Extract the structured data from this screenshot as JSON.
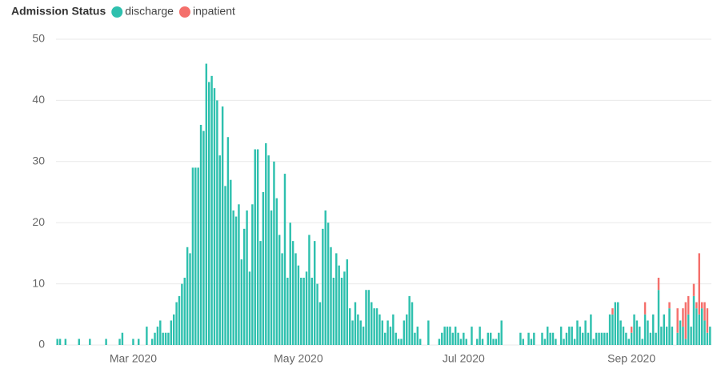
{
  "chart_data": {
    "type": "stacked_bar",
    "legend_title": "Admission Status",
    "legend": "top-left",
    "grid": true,
    "categories": [
      null,
      null,
      null,
      null,
      null,
      null,
      null,
      null,
      null,
      null,
      null,
      null,
      null,
      null,
      null,
      null,
      null,
      null,
      null,
      null,
      null,
      null,
      null,
      null,
      null,
      null,
      null,
      null,
      "Mar 2020",
      null,
      null,
      null,
      null,
      null,
      null,
      null,
      null,
      null,
      null,
      null,
      null,
      null,
      null,
      null,
      null,
      null,
      null,
      null,
      null,
      null,
      null,
      null,
      null,
      null,
      null,
      null,
      null,
      null,
      null,
      null,
      null,
      null,
      null,
      null,
      null,
      null,
      null,
      null,
      null,
      null,
      null,
      null,
      null,
      null,
      null,
      null,
      null,
      null,
      null,
      null,
      null,
      null,
      null,
      null,
      null,
      null,
      null,
      null,
      null,
      "May 2020",
      null,
      null,
      null,
      null,
      null,
      null,
      null,
      null,
      null,
      null,
      null,
      null,
      null,
      null,
      null,
      null,
      null,
      null,
      null,
      null,
      null,
      null,
      null,
      null,
      null,
      null,
      null,
      null,
      null,
      null,
      null,
      null,
      null,
      null,
      null,
      null,
      null,
      null,
      null,
      null,
      null,
      null,
      null,
      null,
      null,
      null,
      null,
      null,
      null,
      null,
      null,
      null,
      null,
      null,
      null,
      null,
      null,
      null,
      null,
      null,
      "Jul 2020",
      null,
      null,
      null,
      null,
      null,
      null,
      null,
      null,
      null,
      null,
      null,
      null,
      null,
      null,
      null,
      null,
      null,
      null,
      null,
      null,
      null,
      null,
      null,
      null,
      null,
      null,
      null,
      null,
      null,
      null,
      null,
      null,
      null,
      null,
      null,
      null,
      null,
      null,
      null,
      null,
      null,
      null,
      null,
      null,
      null,
      null,
      null,
      null,
      null,
      null,
      null,
      null,
      null,
      null,
      null,
      null,
      null,
      null,
      null,
      null,
      null,
      "Sep 2020",
      null,
      null,
      null,
      null,
      null,
      null,
      null,
      null,
      null,
      null,
      null,
      null,
      null,
      null,
      null,
      null,
      null,
      null,
      null,
      null,
      null,
      null,
      null,
      null,
      null,
      null,
      null,
      null,
      null
    ],
    "series": [
      {
        "name": "discharge",
        "color": "#2ec0ae",
        "values": [
          1,
          1,
          0,
          1,
          0,
          0,
          0,
          0,
          1,
          0,
          0,
          0,
          1,
          0,
          0,
          0,
          0,
          0,
          1,
          0,
          0,
          0,
          0,
          1,
          2,
          0,
          0,
          0,
          1,
          0,
          1,
          0,
          0,
          3,
          0,
          1,
          2,
          3,
          4,
          2,
          2,
          2,
          4,
          5,
          7,
          8,
          10,
          11,
          16,
          15,
          29,
          29,
          29,
          36,
          35,
          46,
          43,
          44,
          42,
          40,
          31,
          39,
          26,
          34,
          27,
          22,
          21,
          23,
          14,
          19,
          22,
          12,
          23,
          32,
          32,
          17,
          25,
          33,
          31,
          22,
          30,
          24,
          18,
          15,
          28,
          11,
          20,
          17,
          15,
          13,
          11,
          11,
          12,
          18,
          11,
          17,
          10,
          7,
          19,
          22,
          20,
          16,
          11,
          15,
          13,
          11,
          12,
          14,
          6,
          4,
          7,
          5,
          4,
          3,
          9,
          9,
          7,
          6,
          6,
          5,
          4,
          2,
          4,
          3,
          5,
          2,
          1,
          1,
          4,
          5,
          8,
          7,
          2,
          3,
          1,
          0,
          0,
          4,
          0,
          0,
          0,
          1,
          2,
          3,
          3,
          3,
          2,
          3,
          2,
          1,
          2,
          1,
          0,
          3,
          0,
          1,
          3,
          1,
          0,
          2,
          2,
          1,
          1,
          2,
          4,
          0,
          0,
          0,
          0,
          0,
          0,
          2,
          1,
          0,
          2,
          1,
          2,
          0,
          0,
          2,
          1,
          3,
          2,
          2,
          1,
          0,
          3,
          1,
          2,
          3,
          3,
          1,
          4,
          3,
          2,
          4,
          2,
          5,
          1,
          2,
          2,
          2,
          2,
          2,
          5,
          5,
          7,
          7,
          4,
          3,
          2,
          1,
          2,
          5,
          4,
          3,
          1,
          5,
          4,
          2,
          5,
          2,
          9,
          3,
          5,
          3,
          6,
          3,
          0,
          2,
          4,
          3,
          1,
          5,
          3,
          8,
          6,
          5,
          6,
          4,
          2,
          3
        ]
      },
      {
        "name": "inpatient",
        "color": "#f46f6b",
        "values": [
          0,
          0,
          0,
          0,
          0,
          0,
          0,
          0,
          0,
          0,
          0,
          0,
          0,
          0,
          0,
          0,
          0,
          0,
          0,
          0,
          0,
          0,
          0,
          0,
          0,
          0,
          0,
          0,
          0,
          0,
          0,
          0,
          0,
          0,
          0,
          0,
          0,
          0,
          0,
          0,
          0,
          0,
          0,
          0,
          0,
          0,
          0,
          0,
          0,
          0,
          0,
          0,
          0,
          0,
          0,
          0,
          0,
          0,
          0,
          0,
          0,
          0,
          0,
          0,
          0,
          0,
          0,
          0,
          0,
          0,
          0,
          0,
          0,
          0,
          0,
          0,
          0,
          0,
          0,
          0,
          0,
          0,
          0,
          0,
          0,
          0,
          0,
          0,
          0,
          0,
          0,
          0,
          0,
          0,
          0,
          0,
          0,
          0,
          0,
          0,
          0,
          0,
          0,
          0,
          0,
          0,
          0,
          0,
          0,
          0,
          0,
          0,
          0,
          0,
          0,
          0,
          0,
          0,
          0,
          0,
          0,
          0,
          0,
          0,
          0,
          0,
          0,
          0,
          0,
          0,
          0,
          0,
          0,
          0,
          0,
          0,
          0,
          0,
          0,
          0,
          0,
          0,
          0,
          0,
          0,
          0,
          0,
          0,
          0,
          0,
          0,
          0,
          0,
          0,
          0,
          0,
          0,
          0,
          0,
          0,
          0,
          0,
          0,
          0,
          0,
          0,
          0,
          0,
          0,
          0,
          0,
          0,
          0,
          0,
          0,
          0,
          0,
          0,
          0,
          0,
          0,
          0,
          0,
          0,
          0,
          0,
          0,
          0,
          0,
          0,
          0,
          0,
          0,
          0,
          0,
          0,
          0,
          0,
          0,
          0,
          0,
          0,
          0,
          0,
          0,
          1,
          0,
          0,
          0,
          0,
          0,
          0,
          1,
          0,
          0,
          0,
          0,
          2,
          0,
          0,
          0,
          0,
          2,
          0,
          0,
          0,
          1,
          0,
          0,
          4,
          0,
          3,
          6,
          3,
          0,
          2,
          1,
          10,
          1,
          3,
          4,
          0
        ]
      }
    ],
    "ylim": [
      0,
      50
    ],
    "yticks": [
      0,
      10,
      20,
      30,
      40,
      50
    ]
  }
}
